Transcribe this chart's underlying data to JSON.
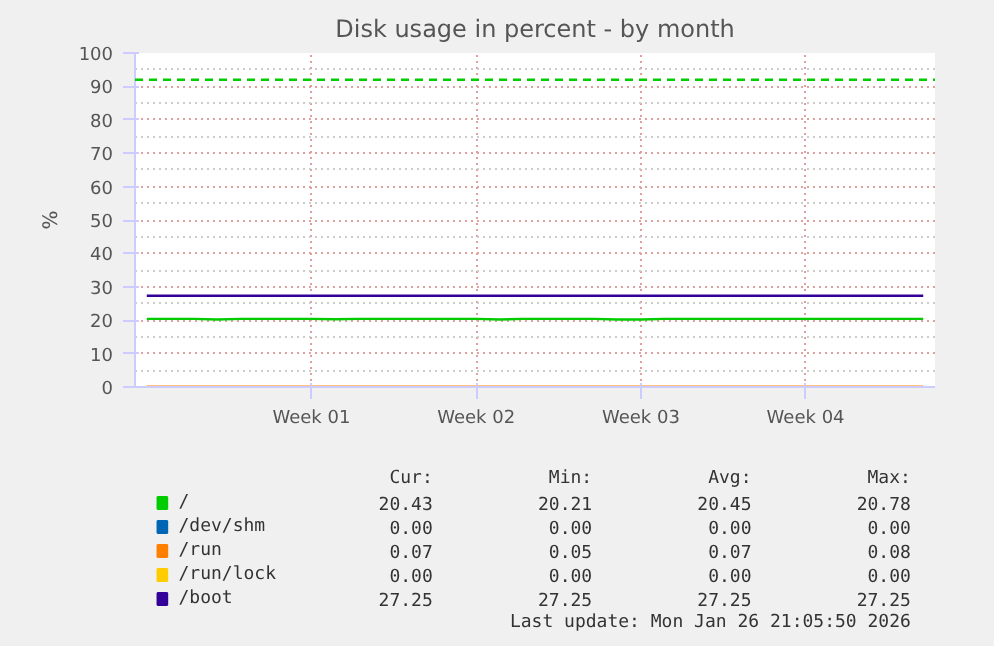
{
  "chart_data": {
    "type": "line",
    "title": "Disk usage in percent - by month",
    "ylabel": "%",
    "categories": [
      null,
      null,
      null,
      null,
      null,
      null,
      null,
      "Week 01",
      null,
      null,
      null,
      null,
      null,
      null,
      "Week 02",
      null,
      null,
      null,
      null,
      null,
      null,
      "Week 03",
      null,
      null,
      null,
      null,
      null,
      null,
      "Week 04",
      null,
      null,
      null,
      null,
      null
    ],
    "ylim": [
      0,
      100
    ],
    "yticks": [
      0,
      10,
      20,
      30,
      40,
      50,
      60,
      70,
      80,
      90,
      100
    ],
    "grid": true,
    "legend": "bottom left",
    "line_style": "solid",
    "marker": "none",
    "series": [
      {
        "name": "/",
        "color": "#00cc00",
        "values": [
          20.4,
          20.4,
          20.4,
          20.2,
          20.4,
          20.4,
          20.4,
          20.4,
          20.3,
          20.4,
          20.4,
          20.4,
          20.4,
          20.4,
          20.4,
          20.2,
          20.4,
          20.4,
          20.4,
          20.4,
          20.2,
          20.2,
          20.4,
          20.4,
          20.4,
          20.4,
          20.4,
          20.4,
          20.4,
          20.4,
          20.4,
          20.4,
          20.4,
          20.4
        ]
      },
      {
        "name": "/dev/shm",
        "color": "#0066b3",
        "values": [
          null,
          null,
          null,
          null,
          null,
          null,
          null,
          null,
          null,
          null,
          null,
          null,
          null,
          null,
          null,
          null,
          null,
          null,
          null,
          null,
          null,
          null,
          null,
          null,
          null,
          null,
          null,
          null,
          null,
          null,
          null,
          null,
          null,
          null
        ]
      },
      {
        "name": "/run",
        "color": "#ff8000",
        "values": [
          0.1,
          0.1,
          0.1,
          0.1,
          0.1,
          0.1,
          0.1,
          0.1,
          0.1,
          0.1,
          0.1,
          0.1,
          0.1,
          0.1,
          0.1,
          0.1,
          0.1,
          0.1,
          0.1,
          0.1,
          0.1,
          0.1,
          0.1,
          0.1,
          0.1,
          0.1,
          0.1,
          0.1,
          0.1,
          0.1,
          0.1,
          0.1,
          0.1,
          0.1
        ]
      },
      {
        "name": "/run/lock",
        "color": "#ffcc00",
        "values": [
          null,
          null,
          null,
          null,
          null,
          null,
          null,
          null,
          null,
          null,
          null,
          null,
          null,
          null,
          null,
          null,
          null,
          null,
          null,
          null,
          null,
          null,
          null,
          null,
          null,
          null,
          null,
          null,
          null,
          null,
          null,
          null,
          null,
          null
        ]
      },
      {
        "name": "/boot",
        "color": "#330099",
        "values": [
          27.3,
          27.3,
          27.3,
          27.3,
          27.3,
          27.3,
          27.3,
          27.3,
          27.3,
          27.3,
          27.3,
          27.3,
          27.3,
          27.3,
          27.3,
          27.3,
          27.3,
          27.3,
          27.3,
          27.3,
          27.3,
          27.3,
          27.3,
          27.3,
          27.3,
          27.3,
          27.3,
          27.3,
          27.3,
          27.3,
          27.3,
          27.3,
          27.3,
          27.3
        ]
      }
    ],
    "ref_lines": [
      {
        "axis": "y",
        "value": 92,
        "color": "#00cc00",
        "line_style": "dashed"
      }
    ],
    "annotations": [
      "Cur:",
      "Min:",
      "Avg:",
      "Max:",
      "20.43",
      "20.21",
      "20.45",
      "20.78",
      "0.00",
      "0.00",
      "0.00",
      "0.00",
      "0.07",
      "0.05",
      "0.07",
      "0.08",
      "0.00",
      "0.00",
      "0.00",
      "0.00",
      "27.25",
      "27.25",
      "27.25",
      "27.25",
      "Last update: Mon Jan 26 21:05:50 2026"
    ]
  }
}
